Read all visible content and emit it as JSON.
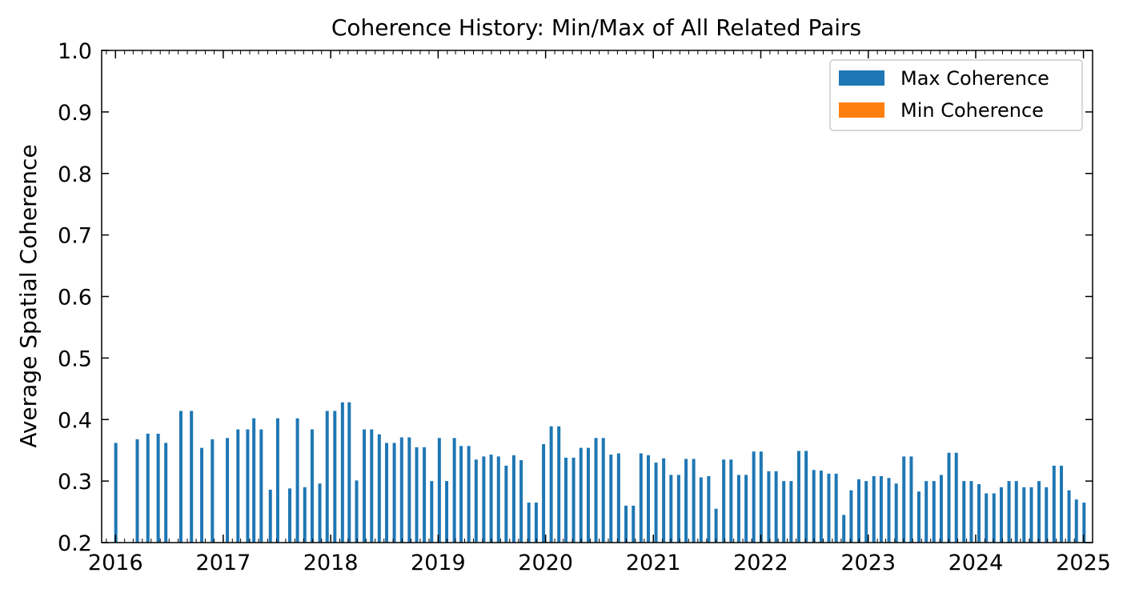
{
  "chart_data": {
    "type": "bar",
    "title": "Coherence History: Min/Max of All Related Pairs",
    "xlabel": "",
    "ylabel": "Average Spatial Coherence",
    "xlim": [
      "2015-11-15",
      "2025-02-01"
    ],
    "ylim": [
      0.2,
      1.0
    ],
    "yticks": [
      0.2,
      0.3,
      0.4,
      0.5,
      0.6,
      0.7,
      0.8,
      0.9,
      1.0
    ],
    "ytick_labels": [
      "0.2",
      "0.3",
      "0.4",
      "0.5",
      "0.6",
      "0.7",
      "0.8",
      "0.9",
      "1.0"
    ],
    "xticks": [
      "2016-01-01",
      "2017-01-01",
      "2018-01-01",
      "2019-01-01",
      "2020-01-01",
      "2021-01-01",
      "2022-01-01",
      "2023-01-01",
      "2024-01-01",
      "2025-01-01"
    ],
    "xtick_labels": [
      "2016",
      "2017",
      "2018",
      "2019",
      "2020",
      "2021",
      "2022",
      "2023",
      "2024",
      "2025"
    ],
    "grid": false,
    "legend_position": "top-right",
    "series": [
      {
        "name": "Max Coherence",
        "color": "#1f77b4",
        "points": [
          [
            "2016-01-02",
            0.362
          ],
          [
            "2016-03-15",
            0.368
          ],
          [
            "2016-04-20",
            0.377
          ],
          [
            "2016-05-25",
            0.377
          ],
          [
            "2016-06-20",
            0.362
          ],
          [
            "2016-08-10",
            0.414
          ],
          [
            "2016-09-15",
            0.414
          ],
          [
            "2016-10-20",
            0.354
          ],
          [
            "2016-11-25",
            0.368
          ],
          [
            "2017-01-15",
            0.37
          ],
          [
            "2017-02-20",
            0.384
          ],
          [
            "2017-03-25",
            0.384
          ],
          [
            "2017-04-15",
            0.402
          ],
          [
            "2017-05-10",
            0.384
          ],
          [
            "2017-06-10",
            0.286
          ],
          [
            "2017-07-05",
            0.402
          ],
          [
            "2017-08-15",
            0.288
          ],
          [
            "2017-09-10",
            0.402
          ],
          [
            "2017-10-05",
            0.29
          ],
          [
            "2017-10-30",
            0.384
          ],
          [
            "2017-11-25",
            0.296
          ],
          [
            "2017-12-20",
            0.414
          ],
          [
            "2018-01-15",
            0.414
          ],
          [
            "2018-02-10",
            0.428
          ],
          [
            "2018-03-05",
            0.428
          ],
          [
            "2018-03-30",
            0.301
          ],
          [
            "2018-04-25",
            0.384
          ],
          [
            "2018-05-20",
            0.384
          ],
          [
            "2018-06-15",
            0.376
          ],
          [
            "2018-07-10",
            0.362
          ],
          [
            "2018-08-05",
            0.362
          ],
          [
            "2018-08-30",
            0.371
          ],
          [
            "2018-09-25",
            0.371
          ],
          [
            "2018-10-20",
            0.355
          ],
          [
            "2018-11-15",
            0.355
          ],
          [
            "2018-12-10",
            0.3
          ],
          [
            "2019-01-05",
            0.37
          ],
          [
            "2019-01-30",
            0.3
          ],
          [
            "2019-02-25",
            0.37
          ],
          [
            "2019-03-20",
            0.357
          ],
          [
            "2019-04-15",
            0.357
          ],
          [
            "2019-05-10",
            0.335
          ],
          [
            "2019-06-05",
            0.34
          ],
          [
            "2019-06-30",
            0.343
          ],
          [
            "2019-07-25",
            0.34
          ],
          [
            "2019-08-20",
            0.325
          ],
          [
            "2019-09-15",
            0.342
          ],
          [
            "2019-10-10",
            0.334
          ],
          [
            "2019-11-05",
            0.265
          ],
          [
            "2019-11-30",
            0.265
          ],
          [
            "2019-12-25",
            0.36
          ],
          [
            "2020-01-20",
            0.389
          ],
          [
            "2020-02-15",
            0.389
          ],
          [
            "2020-03-10",
            0.338
          ],
          [
            "2020-04-05",
            0.338
          ],
          [
            "2020-04-30",
            0.354
          ],
          [
            "2020-05-25",
            0.354
          ],
          [
            "2020-06-20",
            0.37
          ],
          [
            "2020-07-15",
            0.37
          ],
          [
            "2020-08-10",
            0.343
          ],
          [
            "2020-09-05",
            0.345
          ],
          [
            "2020-09-30",
            0.26
          ],
          [
            "2020-10-25",
            0.26
          ],
          [
            "2020-11-20",
            0.345
          ],
          [
            "2020-12-15",
            0.342
          ],
          [
            "2021-01-10",
            0.33
          ],
          [
            "2021-02-05",
            0.337
          ],
          [
            "2021-03-02",
            0.31
          ],
          [
            "2021-03-28",
            0.31
          ],
          [
            "2021-04-22",
            0.336
          ],
          [
            "2021-05-18",
            0.336
          ],
          [
            "2021-06-12",
            0.306
          ],
          [
            "2021-07-08",
            0.308
          ],
          [
            "2021-08-02",
            0.255
          ],
          [
            "2021-08-28",
            0.335
          ],
          [
            "2021-09-22",
            0.335
          ],
          [
            "2021-10-18",
            0.31
          ],
          [
            "2021-11-12",
            0.31
          ],
          [
            "2021-12-08",
            0.348
          ],
          [
            "2022-01-02",
            0.348
          ],
          [
            "2022-01-28",
            0.316
          ],
          [
            "2022-02-22",
            0.316
          ],
          [
            "2022-03-20",
            0.3
          ],
          [
            "2022-04-14",
            0.3
          ],
          [
            "2022-05-10",
            0.349
          ],
          [
            "2022-06-04",
            0.349
          ],
          [
            "2022-06-30",
            0.318
          ],
          [
            "2022-07-25",
            0.317
          ],
          [
            "2022-08-20",
            0.312
          ],
          [
            "2022-09-14",
            0.312
          ],
          [
            "2022-10-10",
            0.245
          ],
          [
            "2022-11-04",
            0.285
          ],
          [
            "2022-11-30",
            0.303
          ],
          [
            "2022-12-25",
            0.3
          ],
          [
            "2023-01-20",
            0.308
          ],
          [
            "2023-02-14",
            0.308
          ],
          [
            "2023-03-12",
            0.305
          ],
          [
            "2023-04-06",
            0.296
          ],
          [
            "2023-05-02",
            0.34
          ],
          [
            "2023-05-27",
            0.34
          ],
          [
            "2023-06-22",
            0.283
          ],
          [
            "2023-07-17",
            0.3
          ],
          [
            "2023-08-12",
            0.3
          ],
          [
            "2023-09-06",
            0.31
          ],
          [
            "2023-10-02",
            0.346
          ],
          [
            "2023-10-27",
            0.346
          ],
          [
            "2023-11-22",
            0.3
          ],
          [
            "2023-12-17",
            0.3
          ],
          [
            "2024-01-12",
            0.295
          ],
          [
            "2024-02-06",
            0.28
          ],
          [
            "2024-03-03",
            0.28
          ],
          [
            "2024-03-28",
            0.29
          ],
          [
            "2024-04-23",
            0.3
          ],
          [
            "2024-05-18",
            0.3
          ],
          [
            "2024-06-13",
            0.29
          ],
          [
            "2024-07-08",
            0.29
          ],
          [
            "2024-08-03",
            0.3
          ],
          [
            "2024-08-28",
            0.29
          ],
          [
            "2024-09-23",
            0.325
          ],
          [
            "2024-10-18",
            0.325
          ],
          [
            "2024-11-13",
            0.285
          ],
          [
            "2024-12-08",
            0.27
          ],
          [
            "2025-01-03",
            0.265
          ]
        ]
      },
      {
        "name": "Min Coherence",
        "color": "#ff7f0e"
      }
    ]
  },
  "legend": {
    "max_label": "Max Coherence",
    "min_label": "Min Coherence"
  }
}
